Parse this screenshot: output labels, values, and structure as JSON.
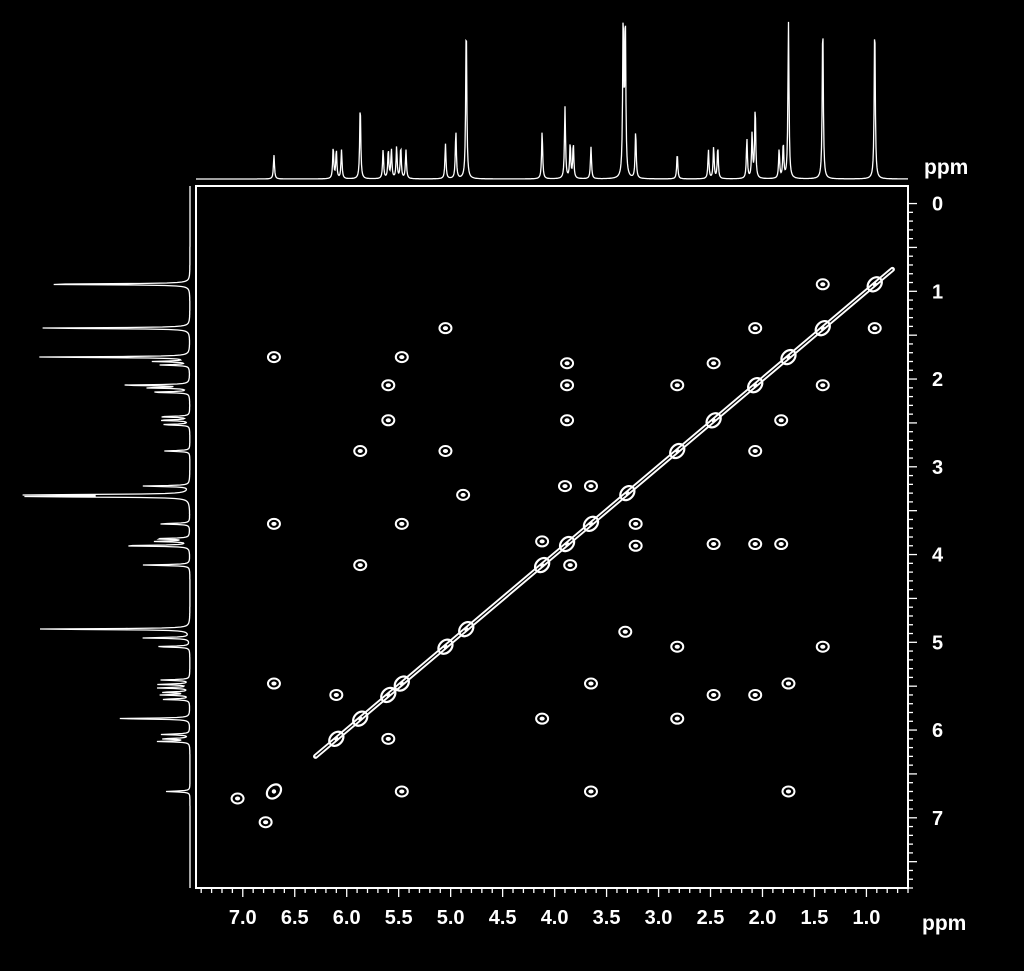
{
  "chart_data": {
    "type": "scatter",
    "subtype": "2D NMR COSY contour plot with projections",
    "title": "",
    "xlabel": "ppm",
    "ylabel": "ppm",
    "xlim": [
      7.45,
      0.6
    ],
    "ylim": [
      -0.2,
      7.8
    ],
    "x_ticks": [
      "7.0",
      "6.5",
      "6.0",
      "5.5",
      "5.0",
      "4.5",
      "4.0",
      "3.5",
      "3.0",
      "2.5",
      "2.0",
      "1.5",
      "1.0"
    ],
    "y_ticks": [
      "0",
      "1",
      "2",
      "3",
      "4",
      "5",
      "6",
      "7"
    ],
    "grid": false,
    "colors": {
      "background": "#000000",
      "foreground": "#ffffff"
    },
    "diagonal": {
      "from": [
        0.75,
        0.75
      ],
      "to": [
        6.3,
        6.3
      ]
    },
    "diagonal_peaks": [
      0.92,
      1.42,
      1.75,
      2.07,
      2.47,
      2.82,
      3.3,
      3.65,
      3.88,
      4.12,
      4.85,
      5.05,
      5.47,
      5.6,
      5.87,
      6.1,
      6.7
    ],
    "cross_peaks": [
      {
        "x": 1.42,
        "y": 0.92
      },
      {
        "x": 0.92,
        "y": 1.42
      },
      {
        "x": 2.07,
        "y": 1.42
      },
      {
        "x": 1.42,
        "y": 2.07
      },
      {
        "x": 5.05,
        "y": 1.42
      },
      {
        "x": 1.42,
        "y": 5.05
      },
      {
        "x": 6.7,
        "y": 1.75
      },
      {
        "x": 1.75,
        "y": 6.7
      },
      {
        "x": 5.47,
        "y": 1.75
      },
      {
        "x": 1.75,
        "y": 5.47
      },
      {
        "x": 3.88,
        "y": 1.82
      },
      {
        "x": 1.82,
        "y": 3.88
      },
      {
        "x": 2.47,
        "y": 1.82
      },
      {
        "x": 1.82,
        "y": 2.47
      },
      {
        "x": 5.6,
        "y": 2.07
      },
      {
        "x": 2.07,
        "y": 5.6
      },
      {
        "x": 3.88,
        "y": 2.07
      },
      {
        "x": 2.07,
        "y": 3.88
      },
      {
        "x": 2.82,
        "y": 2.07
      },
      {
        "x": 2.07,
        "y": 2.82
      },
      {
        "x": 5.6,
        "y": 2.47
      },
      {
        "x": 2.47,
        "y": 5.6
      },
      {
        "x": 3.88,
        "y": 2.47
      },
      {
        "x": 2.47,
        "y": 3.88
      },
      {
        "x": 5.87,
        "y": 2.82
      },
      {
        "x": 2.82,
        "y": 5.87
      },
      {
        "x": 5.05,
        "y": 2.82
      },
      {
        "x": 2.82,
        "y": 5.05
      },
      {
        "x": 3.9,
        "y": 3.22
      },
      {
        "x": 3.22,
        "y": 3.9
      },
      {
        "x": 3.65,
        "y": 3.22
      },
      {
        "x": 3.22,
        "y": 3.65
      },
      {
        "x": 6.7,
        "y": 3.65
      },
      {
        "x": 3.65,
        "y": 6.7
      },
      {
        "x": 5.47,
        "y": 3.65
      },
      {
        "x": 3.65,
        "y": 5.47
      },
      {
        "x": 4.12,
        "y": 3.85
      },
      {
        "x": 3.85,
        "y": 4.12
      },
      {
        "x": 5.87,
        "y": 4.12
      },
      {
        "x": 4.12,
        "y": 5.87
      },
      {
        "x": 6.7,
        "y": 5.47
      },
      {
        "x": 5.47,
        "y": 6.7
      },
      {
        "x": 6.1,
        "y": 5.6
      },
      {
        "x": 5.6,
        "y": 6.1
      },
      {
        "x": 7.05,
        "y": 6.78
      },
      {
        "x": 6.78,
        "y": 7.05
      },
      {
        "x": 4.88,
        "y": 3.32
      },
      {
        "x": 3.32,
        "y": 4.88
      }
    ],
    "projection_peaks": [
      {
        "ppm": 0.92,
        "height": 1.0
      },
      {
        "ppm": 1.42,
        "height": 1.0
      },
      {
        "ppm": 1.75,
        "height": 0.98
      },
      {
        "ppm": 1.8,
        "height": 0.22
      },
      {
        "ppm": 1.84,
        "height": 0.18
      },
      {
        "ppm": 2.07,
        "height": 0.45
      },
      {
        "ppm": 2.1,
        "height": 0.28
      },
      {
        "ppm": 2.15,
        "height": 0.25
      },
      {
        "ppm": 2.43,
        "height": 0.2
      },
      {
        "ppm": 2.47,
        "height": 0.2
      },
      {
        "ppm": 2.52,
        "height": 0.18
      },
      {
        "ppm": 2.82,
        "height": 0.16
      },
      {
        "ppm": 3.22,
        "height": 0.3
      },
      {
        "ppm": 3.32,
        "height": 1.0
      },
      {
        "ppm": 3.34,
        "height": 1.0
      },
      {
        "ppm": 3.65,
        "height": 0.2
      },
      {
        "ppm": 3.82,
        "height": 0.22
      },
      {
        "ppm": 3.85,
        "height": 0.22
      },
      {
        "ppm": 3.9,
        "height": 0.45
      },
      {
        "ppm": 4.12,
        "height": 0.3
      },
      {
        "ppm": 4.85,
        "height": 1.0
      },
      {
        "ppm": 4.95,
        "height": 0.3
      },
      {
        "ppm": 5.05,
        "height": 0.22
      },
      {
        "ppm": 5.43,
        "height": 0.18
      },
      {
        "ppm": 5.48,
        "height": 0.2
      },
      {
        "ppm": 5.52,
        "height": 0.2
      },
      {
        "ppm": 5.57,
        "height": 0.18
      },
      {
        "ppm": 5.6,
        "height": 0.18
      },
      {
        "ppm": 5.65,
        "height": 0.18
      },
      {
        "ppm": 5.87,
        "height": 0.47
      },
      {
        "ppm": 6.05,
        "height": 0.18
      },
      {
        "ppm": 6.1,
        "height": 0.18
      },
      {
        "ppm": 6.13,
        "height": 0.2
      },
      {
        "ppm": 6.7,
        "height": 0.15
      }
    ]
  }
}
